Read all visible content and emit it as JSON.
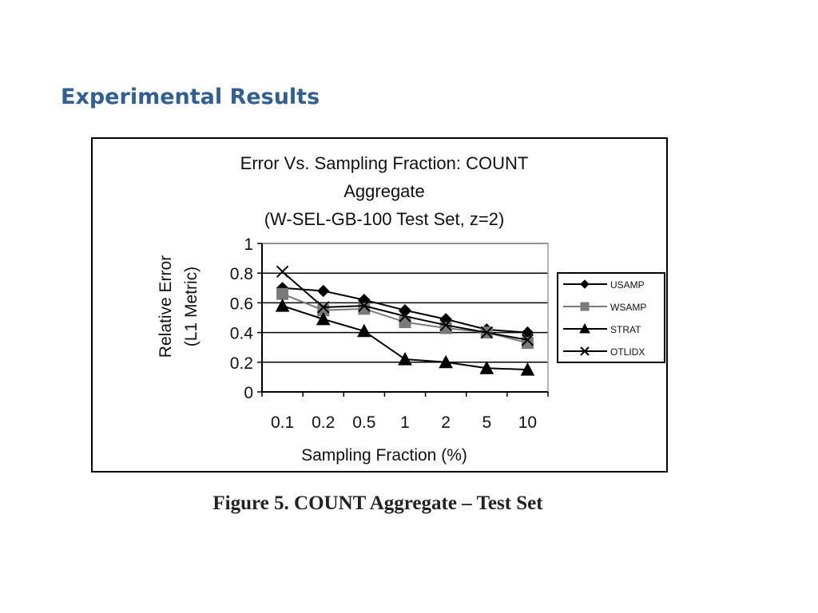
{
  "slide": {
    "title": "Experimental Results",
    "caption": "Figure 5. COUNT Aggregate – Test Set"
  },
  "chart_data": {
    "type": "line",
    "title": [
      "Error Vs. Sampling Fraction: COUNT",
      "Aggregate",
      "(W-SEL-GB-100 Test Set, z=2)"
    ],
    "xlabel": "Sampling Fraction (%)",
    "ylabel": [
      "Relative Error",
      "(L1 Metric)"
    ],
    "categories": [
      "0.1",
      "0.2",
      "0.5",
      "1",
      "2",
      "5",
      "10"
    ],
    "ylim": [
      0,
      1
    ],
    "yticks": [
      "0",
      "0.2",
      "0.4",
      "0.6",
      "0.8",
      "1"
    ],
    "grid": true,
    "legend_position": "right",
    "series": [
      {
        "name": "USAMP",
        "marker": "diamond",
        "color": "#000000",
        "values": [
          0.7,
          0.68,
          0.62,
          0.55,
          0.49,
          0.42,
          0.4
        ]
      },
      {
        "name": "WSAMP",
        "marker": "square",
        "color": "#7a7a7a",
        "values": [
          0.66,
          0.55,
          0.56,
          0.47,
          0.43,
          0.4,
          0.33
        ]
      },
      {
        "name": "STRAT",
        "marker": "triangle",
        "color": "#000000",
        "values": [
          0.58,
          0.49,
          0.41,
          0.22,
          0.2,
          0.16,
          0.15
        ]
      },
      {
        "name": "OTLIDX",
        "marker": "x",
        "color": "#000000",
        "values": [
          0.81,
          0.57,
          0.58,
          0.51,
          0.45,
          0.4,
          0.35
        ]
      }
    ]
  }
}
